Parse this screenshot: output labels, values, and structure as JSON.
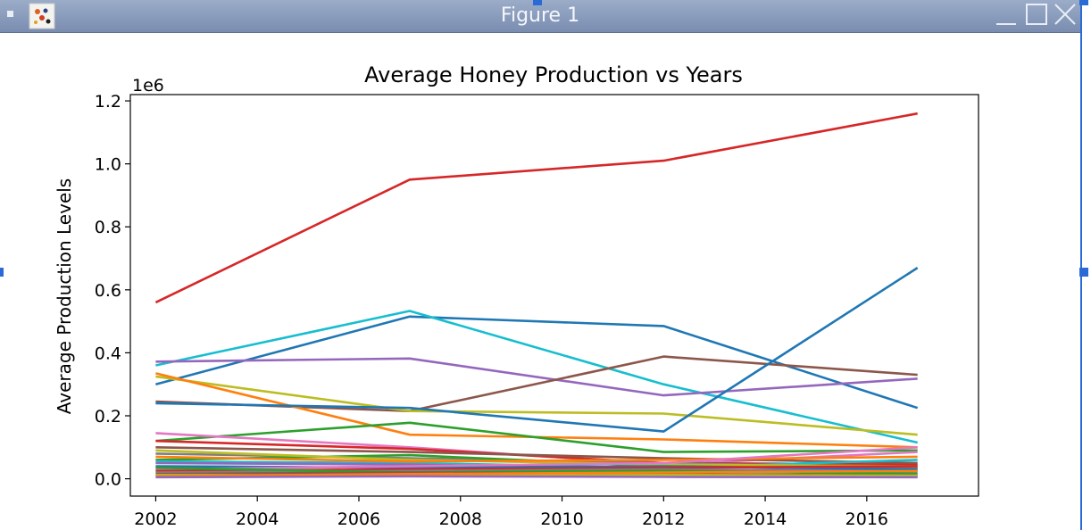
{
  "window": {
    "title": "Figure 1",
    "app_icon": "matplotlib-figure-icon",
    "controls": [
      "minimize-icon",
      "maximize-icon",
      "close-icon"
    ]
  },
  "colors": {
    "titlebar": "#8a9cbd",
    "frame_accent": "#2a6ad6",
    "axes": "#000000"
  },
  "chart_data": {
    "type": "line",
    "title": "Average Honey Production vs Years",
    "xlabel": "",
    "ylabel": "Average Production Levels",
    "y_offset_label": "1e6",
    "xlim": [
      2001.5,
      2018.2
    ],
    "ylim": [
      -0.055,
      1.22
    ],
    "y_scale": 1000000,
    "grid": false,
    "legend": "none",
    "x_ticks": [
      2002,
      2004,
      2006,
      2008,
      2010,
      2012,
      2014,
      2016
    ],
    "x_tick_labels": [
      "2002",
      "2004",
      "2006",
      "2008",
      "2010",
      "2012",
      "2014",
      "2016"
    ],
    "y_ticks": [
      0.0,
      0.2,
      0.4,
      0.6,
      0.8,
      1.0,
      1.2
    ],
    "y_tick_labels": [
      "0.0",
      "0.2",
      "0.4",
      "0.6",
      "0.8",
      "1.0",
      "1.2"
    ],
    "x": [
      2002,
      2007,
      2012,
      2017
    ],
    "series": [
      {
        "color": "#d62728",
        "values": [
          0.56,
          0.95,
          1.01,
          1.16
        ]
      },
      {
        "color": "#1f77b4",
        "values": [
          0.3,
          0.515,
          0.485,
          0.225
        ]
      },
      {
        "color": "#17becf",
        "values": [
          0.36,
          0.533,
          0.3,
          0.115
        ]
      },
      {
        "color": "#9467bd",
        "values": [
          0.372,
          0.382,
          0.265,
          0.318
        ]
      },
      {
        "color": "#8c564b",
        "values": [
          0.245,
          0.215,
          0.388,
          0.33
        ]
      },
      {
        "color": "#bcbd22",
        "values": [
          0.325,
          0.215,
          0.207,
          0.14
        ]
      },
      {
        "color": "#ff7f0e",
        "values": [
          0.335,
          0.14,
          0.125,
          0.1
        ]
      },
      {
        "color": "#1f77b4",
        "values": [
          0.24,
          0.225,
          0.15,
          0.67
        ]
      },
      {
        "color": "#2ca02c",
        "values": [
          0.12,
          0.178,
          0.085,
          0.09
        ]
      },
      {
        "color": "#e377c2",
        "values": [
          0.145,
          0.1,
          0.045,
          0.085
        ]
      },
      {
        "color": "#d62728",
        "values": [
          0.12,
          0.095,
          0.05,
          0.045
        ]
      },
      {
        "color": "#8c564b",
        "values": [
          0.1,
          0.085,
          0.065,
          0.05
        ]
      },
      {
        "color": "#7f7f7f",
        "values": [
          0.08,
          0.065,
          0.05,
          0.035
        ]
      },
      {
        "color": "#2ca02c",
        "values": [
          0.06,
          0.075,
          0.04,
          0.03
        ]
      },
      {
        "color": "#17becf",
        "values": [
          0.055,
          0.05,
          0.035,
          0.06
        ]
      },
      {
        "color": "#bcbd22",
        "values": [
          0.09,
          0.06,
          0.045,
          0.04
        ]
      },
      {
        "color": "#ff7f0e",
        "values": [
          0.07,
          0.055,
          0.06,
          0.07
        ]
      },
      {
        "color": "#9467bd",
        "values": [
          0.05,
          0.045,
          0.03,
          0.025
        ]
      },
      {
        "color": "#1f77b4",
        "values": [
          0.04,
          0.035,
          0.04,
          0.03
        ]
      },
      {
        "color": "#e377c2",
        "values": [
          0.03,
          0.04,
          0.05,
          0.1
        ]
      },
      {
        "color": "#d62728",
        "values": [
          0.025,
          0.03,
          0.035,
          0.04
        ]
      },
      {
        "color": "#7f7f7f",
        "values": [
          0.02,
          0.025,
          0.03,
          0.02
        ]
      },
      {
        "color": "#2ca02c",
        "values": [
          0.035,
          0.02,
          0.025,
          0.015
        ]
      },
      {
        "color": "#8c564b",
        "values": [
          0.015,
          0.02,
          0.015,
          0.01
        ]
      },
      {
        "color": "#17becf",
        "values": [
          0.01,
          0.012,
          0.01,
          0.008
        ]
      },
      {
        "color": "#bcbd22",
        "values": [
          0.012,
          0.01,
          0.012,
          0.01
        ]
      },
      {
        "color": "#ff7f0e",
        "values": [
          0.008,
          0.015,
          0.02,
          0.025
        ]
      },
      {
        "color": "#9467bd",
        "values": [
          0.005,
          0.008,
          0.006,
          0.005
        ]
      }
    ]
  }
}
